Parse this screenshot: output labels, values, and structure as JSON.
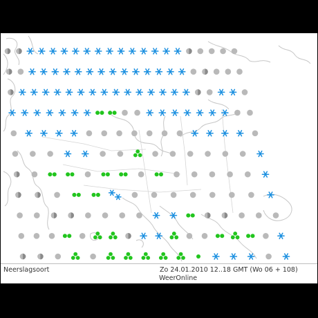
{
  "footer": {
    "title": "Neerslagsoort",
    "timestamp": "Zo 24.01.2010 12..18 GMT (Wo 06 + 108)",
    "source": "WeerOnline"
  },
  "legend_colors": {
    "snow": "#1a8fe0",
    "rain": "#22c51e",
    "dry": "#b9b9b9",
    "mixed_dark": "#8a8a8a",
    "coastline": "#c6c6c6"
  },
  "symbol_icons": {
    "*": "snowflake-icon",
    "**": "snow-pair-icon",
    ".": "dry-dot-icon",
    "o": "rain-pair-icon",
    "O": "rain-cluster-icon",
    "r": "single-drop-icon",
    "|": "mixed-half-icon"
  },
  "grid_rows": [
    "||**************|....",
    "|.**************.|...",
    "|***************|.**.",
    "*******oo..*******..",
    ".****.......****.",
    "...**..O......*",
    "|.oo.oo.o.....*",
    "||.oo**.......*",
    "..||....**o||...",
    "...o.OO|**O..oOo.*",
    "||.O.OOOOOr***.*"
  ]
}
